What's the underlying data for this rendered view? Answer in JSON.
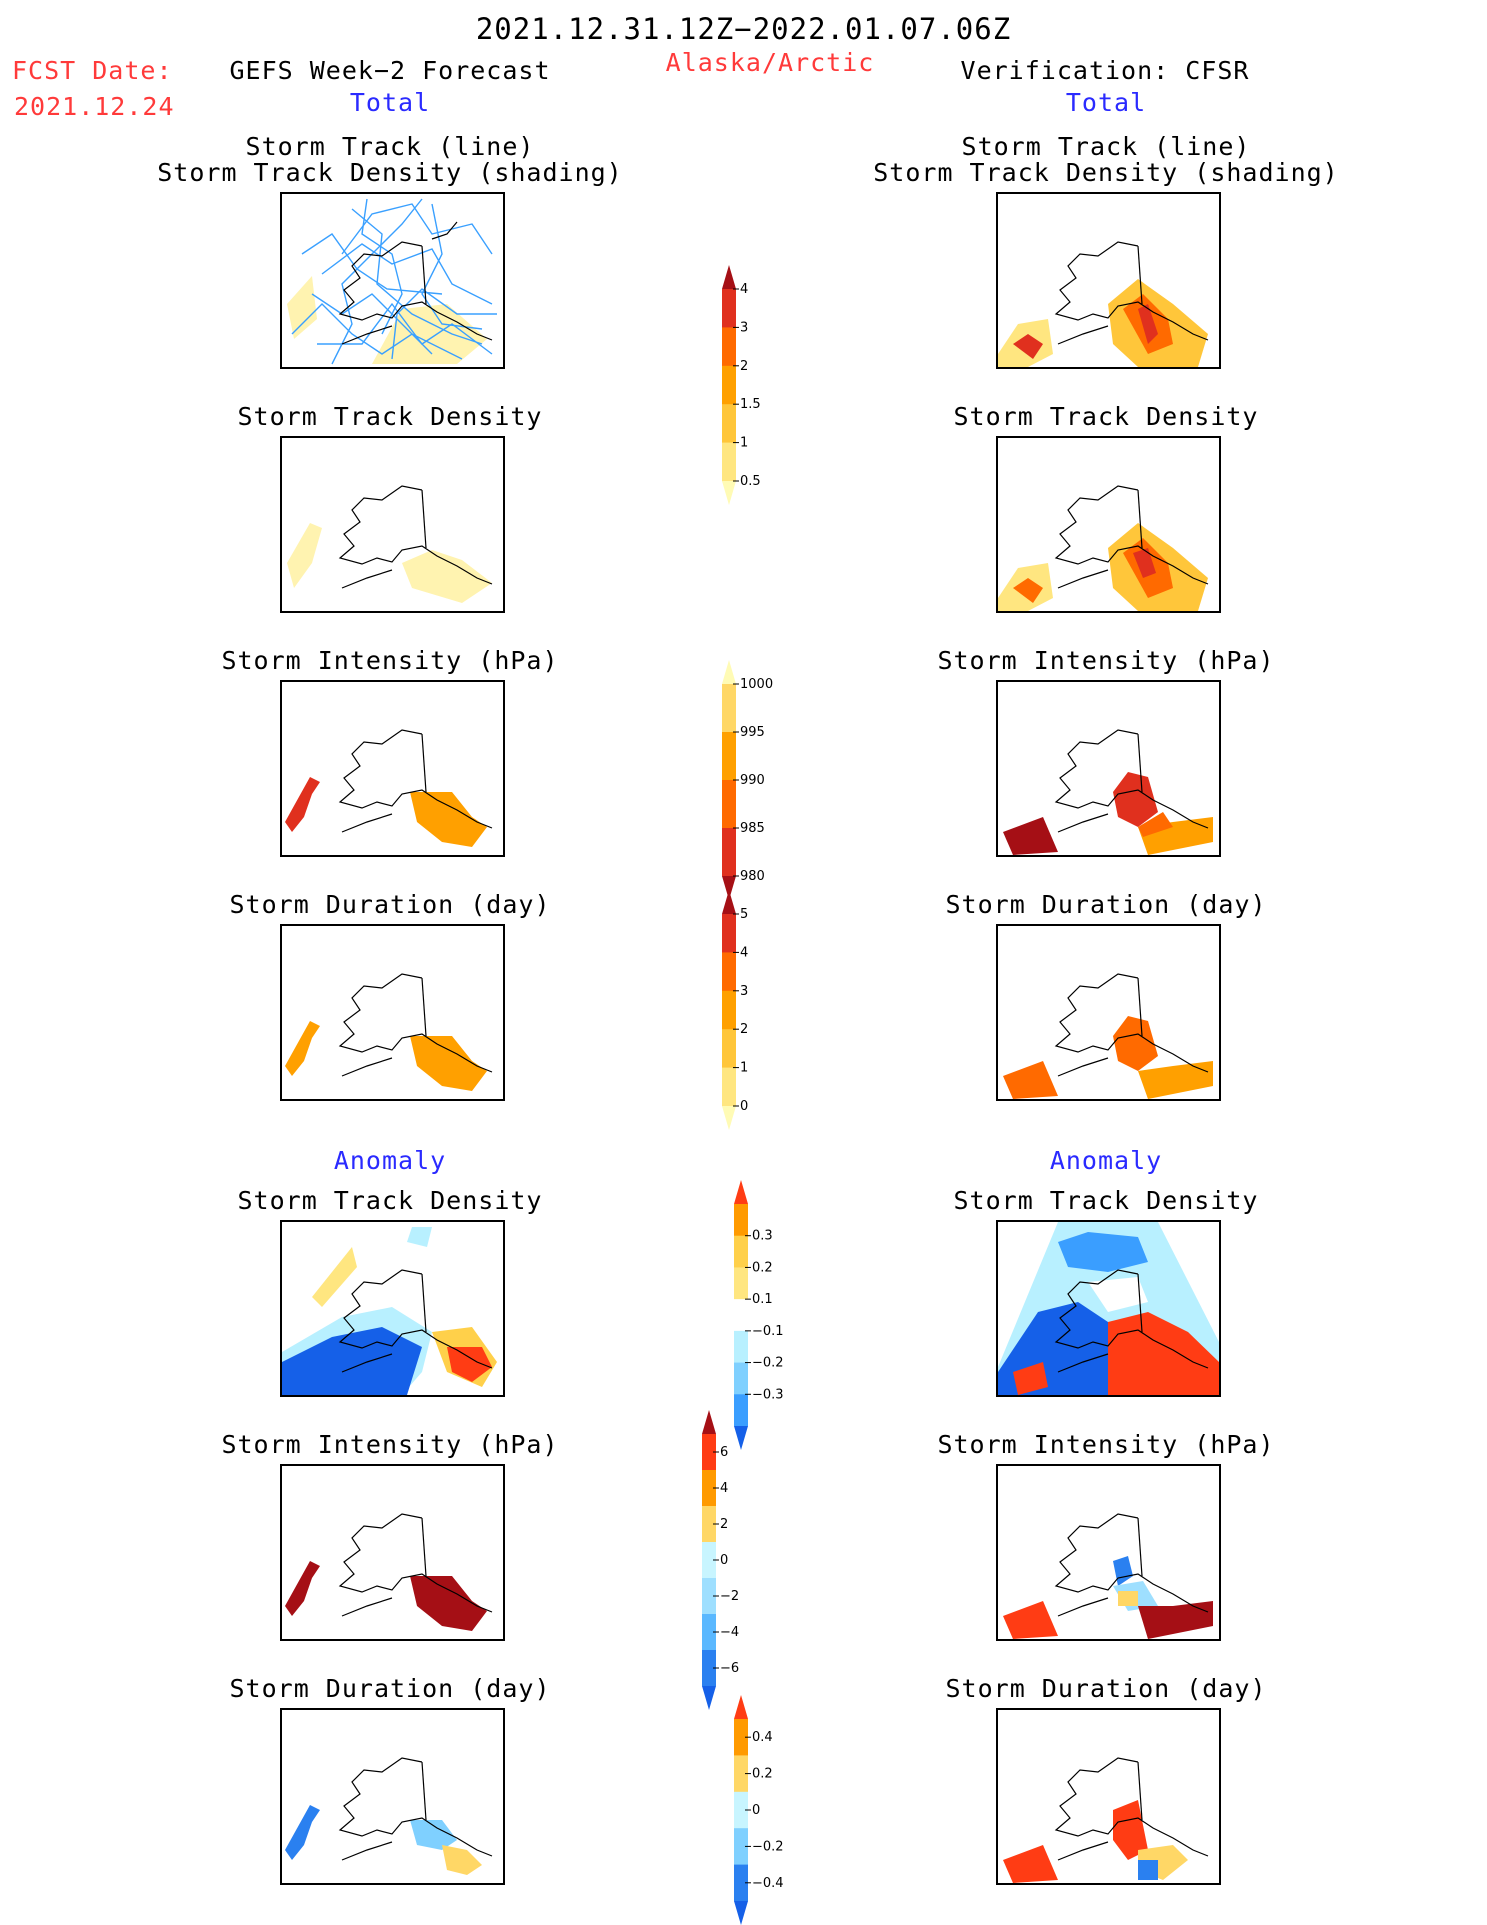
{
  "header": {
    "period": "2021.12.31.12Z−2022.01.07.06Z",
    "region": "Alaska/Arctic",
    "fcst_label": "FCST Date:",
    "fcst_date": "2021.12.24",
    "left_title": "GEFS Week−2 Forecast",
    "right_title": "Verification: CFSR",
    "left_sub": "Total",
    "right_sub": "Total"
  },
  "sections": {
    "anomaly_left": "Anomaly",
    "anomaly_right": "Anomaly"
  },
  "panel_titles": {
    "track_line": "Storm Track (line)",
    "track_shading": "Storm Track Density (shading)",
    "density": "Storm Track Density",
    "intensity": "Storm Intensity (hPa)",
    "duration": "Storm Duration (day)"
  },
  "colorbars": {
    "density_total": {
      "labels": [
        "4",
        "3",
        "2",
        "1.5",
        "1",
        "0.5"
      ],
      "colors": [
        "#a50f15",
        "#e0301e",
        "#ff6a00",
        "#ffa000",
        "#ffc63a",
        "#ffe680",
        "#fffbb5"
      ]
    },
    "intensity_total": {
      "labels": [
        "1000",
        "995",
        "990",
        "985",
        "980"
      ],
      "colors": [
        "#fffbb5",
        "#ffd766",
        "#ffa000",
        "#ff6a00",
        "#e0301e",
        "#a50f15"
      ]
    },
    "duration_total": {
      "labels": [
        "5",
        "4",
        "3",
        "2",
        "1",
        "0"
      ],
      "colors": [
        "#a50f15",
        "#e0301e",
        "#ff6a00",
        "#ffa000",
        "#ffc63a",
        "#ffe680",
        "#fffbb5"
      ]
    },
    "density_anom": {
      "labels": [
        "0.3",
        "0.2",
        "0.1",
        "−0.1",
        "−0.2",
        "−0.3"
      ],
      "colors": [
        "#ff3c14",
        "#ff9a00",
        "#ffd04a",
        "#ffe680",
        "#ffffff",
        "#b8f0ff",
        "#7fd0ff",
        "#3a9eff",
        "#1560e8"
      ]
    },
    "intensity_anom": {
      "labels": [
        "6",
        "4",
        "2",
        "0",
        "−2",
        "−4",
        "−6"
      ],
      "colors": [
        "#a50f15",
        "#ff3c14",
        "#ff9a00",
        "#ffd766",
        "#c8f5ff",
        "#9edfff",
        "#5ab8ff",
        "#2a80f0",
        "#1560e8"
      ]
    },
    "duration_anom": {
      "labels": [
        "0.4",
        "0.2",
        "0",
        "−0.2",
        "−0.4"
      ],
      "colors": [
        "#ff3c14",
        "#ff9a00",
        "#ffd766",
        "#c8f5ff",
        "#7fd0ff",
        "#2a80f0",
        "#1560e8"
      ]
    }
  },
  "colors": {
    "title_red": "#ff3a3a",
    "subtitle_blue": "#2a2aff",
    "track_line": "#3aa0ff"
  }
}
